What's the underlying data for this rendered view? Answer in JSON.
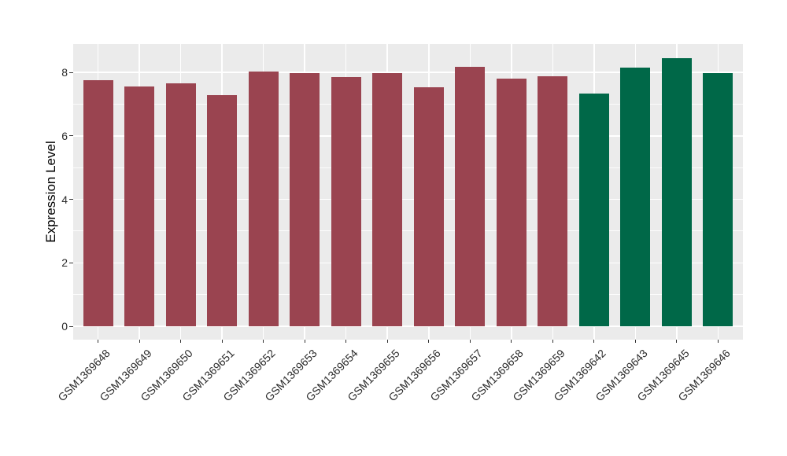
{
  "figure": {
    "background_color": "#FFFFFF",
    "panel_color": "#EBEBEB",
    "grid_color": "#FFFFFF",
    "tick_mark_color": "#333333",
    "axis_text_color": "#2B2B2B",
    "axis_title_color": "#000000"
  },
  "chart_data": {
    "type": "bar",
    "title": "",
    "xlabel": "",
    "ylabel": "Expression Level",
    "categories": [
      "GSM1369648",
      "GSM1369649",
      "GSM1369650",
      "GSM1369651",
      "GSM1369652",
      "GSM1369653",
      "GSM1369654",
      "GSM1369655",
      "GSM1369656",
      "GSM1369657",
      "GSM1369658",
      "GSM1369659",
      "GSM1369642",
      "GSM1369643",
      "GSM1369645",
      "GSM1369646"
    ],
    "values": [
      7.76,
      7.56,
      7.66,
      7.27,
      8.02,
      7.97,
      7.86,
      7.97,
      7.52,
      8.18,
      7.8,
      7.87,
      7.33,
      8.14,
      8.44,
      7.98
    ],
    "bar_colors": [
      "#9A4450",
      "#9A4450",
      "#9A4450",
      "#9A4450",
      "#9A4450",
      "#9A4450",
      "#9A4450",
      "#9A4450",
      "#9A4450",
      "#9A4450",
      "#9A4450",
      "#9A4450",
      "#006848",
      "#006848",
      "#006848",
      "#006848"
    ],
    "ylim": [
      0,
      8.9
    ],
    "yticks": [
      0,
      2,
      4,
      6,
      8
    ],
    "yticks_minor": [
      1,
      3,
      5,
      7
    ],
    "x_tick_rotation_deg": 45,
    "grid": "white major and minor horizontal lines, white vertical line at each category center, on gray panel",
    "legend_position": "none"
  }
}
